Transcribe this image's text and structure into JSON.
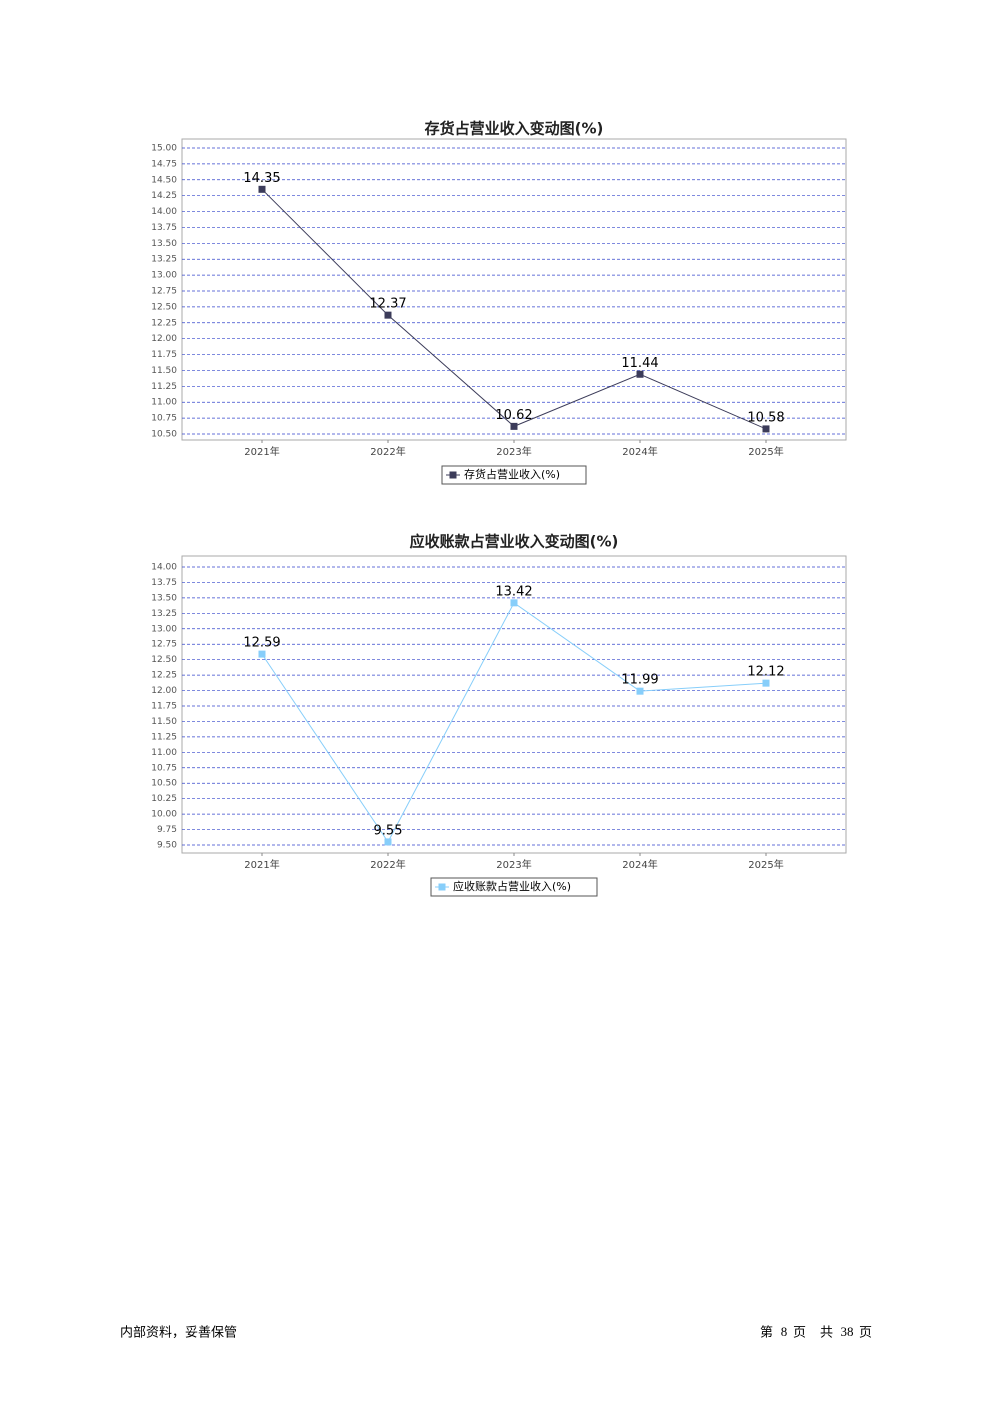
{
  "chart_data": [
    {
      "type": "line",
      "title": "存货占营业收入变动图(%)",
      "categories": [
        "2021年",
        "2022年",
        "2023年",
        "2024年",
        "2025年"
      ],
      "series": [
        {
          "name": "存货占营业收入(%)",
          "color": "#3c3c5a",
          "values": [
            14.35,
            12.37,
            10.62,
            11.44,
            10.58
          ]
        }
      ],
      "ylim": [
        10.5,
        15.0
      ],
      "yticks": [
        {
          "value": 10.5,
          "label": "10.50"
        },
        {
          "value": 10.75,
          "label": "10.75"
        },
        {
          "value": 11.0,
          "label": "11.00"
        },
        {
          "value": 11.25,
          "label": "11.25"
        },
        {
          "value": 11.5,
          "label": "11.50"
        },
        {
          "value": 11.75,
          "label": "11.75"
        },
        {
          "value": 12.0,
          "label": "12.00"
        },
        {
          "value": 12.25,
          "label": "12.25"
        },
        {
          "value": 12.5,
          "label": "12.50"
        },
        {
          "value": 12.75,
          "label": "12.75"
        },
        {
          "value": 13.0,
          "label": "13.00"
        },
        {
          "value": 13.25,
          "label": "13.25"
        },
        {
          "value": 13.5,
          "label": "13.50"
        },
        {
          "value": 13.75,
          "label": "13.75"
        },
        {
          "value": 14.0,
          "label": "14.00"
        },
        {
          "value": 14.25,
          "label": "14.25"
        },
        {
          "value": 14.5,
          "label": "14.50"
        },
        {
          "value": 14.75,
          "label": "14.75"
        },
        {
          "value": 15.0,
          "label": "15.00"
        }
      ],
      "grid": true
    },
    {
      "type": "line",
      "title": "应收账款占营业收入变动图(%)",
      "categories": [
        "2021年",
        "2022年",
        "2023年",
        "2024年",
        "2025年"
      ],
      "series": [
        {
          "name": "应收账款占营业收入(%)",
          "color": "#87cefa",
          "values": [
            12.59,
            9.55,
            13.42,
            11.99,
            12.12
          ]
        }
      ],
      "ylim": [
        9.5,
        14.0
      ],
      "yticks": [
        {
          "value": 9.5,
          "label": "9.50"
        },
        {
          "value": 9.75,
          "label": "9.75"
        },
        {
          "value": 10.0,
          "label": "10.00"
        },
        {
          "value": 10.25,
          "label": "10.25"
        },
        {
          "value": 10.5,
          "label": "10.50"
        },
        {
          "value": 10.75,
          "label": "10.75"
        },
        {
          "value": 11.0,
          "label": "11.00"
        },
        {
          "value": 11.25,
          "label": "11.25"
        },
        {
          "value": 11.5,
          "label": "11.50"
        },
        {
          "value": 11.75,
          "label": "11.75"
        },
        {
          "value": 12.0,
          "label": "12.00"
        },
        {
          "value": 12.25,
          "label": "12.25"
        },
        {
          "value": 12.5,
          "label": "12.50"
        },
        {
          "value": 12.75,
          "label": "12.75"
        },
        {
          "value": 13.0,
          "label": "13.00"
        },
        {
          "value": 13.25,
          "label": "13.25"
        },
        {
          "value": 13.5,
          "label": "13.50"
        },
        {
          "value": 13.75,
          "label": "13.75"
        },
        {
          "value": 14.0,
          "label": "14.00"
        }
      ],
      "grid": true
    }
  ],
  "footer": {
    "left": "内部资料，妥善保管",
    "page_prefix": "第",
    "page": 8,
    "page_suffix": "页",
    "total_prefix": "共",
    "total": 38,
    "total_suffix": "页"
  }
}
